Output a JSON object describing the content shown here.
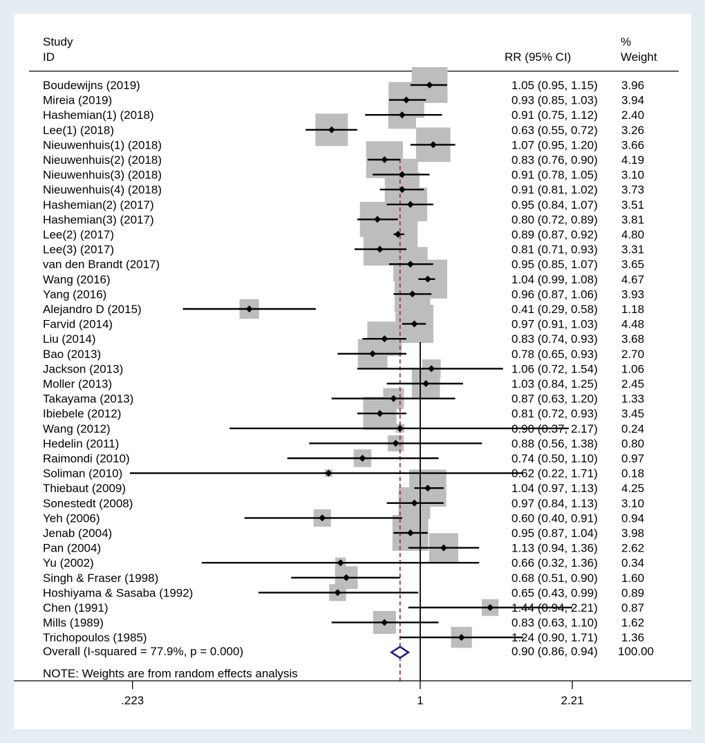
{
  "chart_data": {
    "type": "forest",
    "header": {
      "study_line1": "Study",
      "study_line2": "ID",
      "effect_label": "RR (95% CI)",
      "weight_line1": "%",
      "weight_line2": "Weight"
    },
    "x_scale": "log",
    "xlim": [
      0.13,
      3.85
    ],
    "x_ticks": [
      {
        "value": 0.223,
        "label": ".223"
      },
      {
        "value": 1,
        "label": "1"
      },
      {
        "value": 2.21,
        "label": "2.21"
      }
    ],
    "null_line": 1,
    "studies": [
      {
        "label": "Boudewijns (2019)",
        "rr": 1.05,
        "lo": 0.95,
        "hi": 1.15,
        "ci_text": "1.05 (0.95, 1.15)",
        "weight": 3.96,
        "weight_text": "3.96"
      },
      {
        "label": "Mireia  (2019)",
        "rr": 0.93,
        "lo": 0.85,
        "hi": 1.03,
        "ci_text": "0.93 (0.85, 1.03)",
        "weight": 3.94,
        "weight_text": "3.94"
      },
      {
        "label": "Hashemian(1) (2018)",
        "rr": 0.91,
        "lo": 0.75,
        "hi": 1.12,
        "ci_text": "0.91 (0.75, 1.12)",
        "weight": 2.4,
        "weight_text": "2.40"
      },
      {
        "label": "Lee(1) (2018)",
        "rr": 0.63,
        "lo": 0.55,
        "hi": 0.72,
        "ci_text": "0.63 (0.55, 0.72)",
        "weight": 3.26,
        "weight_text": "3.26"
      },
      {
        "label": "Nieuwenhuis(1) (2018)",
        "rr": 1.07,
        "lo": 0.95,
        "hi": 1.2,
        "ci_text": "1.07 (0.95, 1.20)",
        "weight": 3.66,
        "weight_text": "3.66"
      },
      {
        "label": "Nieuwenhuis(2) (2018)",
        "rr": 0.83,
        "lo": 0.76,
        "hi": 0.9,
        "ci_text": "0.83 (0.76, 0.90)",
        "weight": 4.19,
        "weight_text": "4.19"
      },
      {
        "label": "Nieuwenhuis(3) (2018)",
        "rr": 0.91,
        "lo": 0.78,
        "hi": 1.05,
        "ci_text": "0.91 (0.78, 1.05)",
        "weight": 3.1,
        "weight_text": "3.10"
      },
      {
        "label": "Nieuwenhuis(4) (2018)",
        "rr": 0.91,
        "lo": 0.81,
        "hi": 1.02,
        "ci_text": "0.91 (0.81, 1.02)",
        "weight": 3.73,
        "weight_text": "3.73"
      },
      {
        "label": "Hashemian(2) (2017)",
        "rr": 0.95,
        "lo": 0.84,
        "hi": 1.07,
        "ci_text": "0.95 (0.84, 1.07)",
        "weight": 3.51,
        "weight_text": "3.51"
      },
      {
        "label": "Hashemian(3) (2017)",
        "rr": 0.8,
        "lo": 0.72,
        "hi": 0.89,
        "ci_text": "0.80 (0.72, 0.89)",
        "weight": 3.81,
        "weight_text": "3.81"
      },
      {
        "label": "Lee(2) (2017)",
        "rr": 0.89,
        "lo": 0.87,
        "hi": 0.92,
        "ci_text": "0.89 (0.87, 0.92)",
        "weight": 4.8,
        "weight_text": "4.80"
      },
      {
        "label": "Lee(3) (2017)",
        "rr": 0.81,
        "lo": 0.71,
        "hi": 0.93,
        "ci_text": "0.81 (0.71, 0.93)",
        "weight": 3.31,
        "weight_text": "3.31"
      },
      {
        "label": "van den Brandt (2017)",
        "rr": 0.95,
        "lo": 0.85,
        "hi": 1.07,
        "ci_text": "0.95 (0.85, 1.07)",
        "weight": 3.65,
        "weight_text": "3.65"
      },
      {
        "label": "Wang (2016)",
        "rr": 1.04,
        "lo": 0.99,
        "hi": 1.08,
        "ci_text": "1.04 (0.99, 1.08)",
        "weight": 4.67,
        "weight_text": "4.67"
      },
      {
        "label": "Yang (2016)",
        "rr": 0.96,
        "lo": 0.87,
        "hi": 1.06,
        "ci_text": "0.96 (0.87, 1.06)",
        "weight": 3.93,
        "weight_text": "3.93"
      },
      {
        "label": "Alejandro D (2015)",
        "rr": 0.41,
        "lo": 0.29,
        "hi": 0.58,
        "ci_text": "0.41 (0.29, 0.58)",
        "weight": 1.18,
        "weight_text": "1.18"
      },
      {
        "label": "Farvid (2014)",
        "rr": 0.97,
        "lo": 0.91,
        "hi": 1.03,
        "ci_text": "0.97 (0.91, 1.03)",
        "weight": 4.48,
        "weight_text": "4.48"
      },
      {
        "label": "Liu (2014)",
        "rr": 0.83,
        "lo": 0.74,
        "hi": 0.93,
        "ci_text": "0.83 (0.74, 0.93)",
        "weight": 3.68,
        "weight_text": "3.68"
      },
      {
        "label": "Bao (2013)",
        "rr": 0.78,
        "lo": 0.65,
        "hi": 0.93,
        "ci_text": "0.78 (0.65, 0.93)",
        "weight": 2.7,
        "weight_text": "2.70"
      },
      {
        "label": "Jackson (2013)",
        "rr": 1.06,
        "lo": 0.72,
        "hi": 1.54,
        "ci_text": "1.06 (0.72, 1.54)",
        "weight": 1.06,
        "weight_text": "1.06"
      },
      {
        "label": "Moller (2013)",
        "rr": 1.03,
        "lo": 0.84,
        "hi": 1.25,
        "ci_text": "1.03 (0.84, 1.25)",
        "weight": 2.45,
        "weight_text": "2.45"
      },
      {
        "label": "Takayama (2013)",
        "rr": 0.87,
        "lo": 0.63,
        "hi": 1.2,
        "ci_text": "0.87 (0.63, 1.20)",
        "weight": 1.33,
        "weight_text": "1.33"
      },
      {
        "label": "Ibiebele (2012)",
        "rr": 0.81,
        "lo": 0.72,
        "hi": 0.93,
        "ci_text": "0.81 (0.72, 0.93)",
        "weight": 3.45,
        "weight_text": "3.45"
      },
      {
        "label": "Wang (2012)",
        "rr": 0.9,
        "lo": 0.37,
        "hi": 2.17,
        "ci_text": "0.90 (0.37, 2.17)",
        "weight": 0.24,
        "weight_text": "0.24"
      },
      {
        "label": "Hedelin (2011)",
        "rr": 0.88,
        "lo": 0.56,
        "hi": 1.38,
        "ci_text": "0.88 (0.56, 1.38)",
        "weight": 0.8,
        "weight_text": "0.80"
      },
      {
        "label": "Raimondi (2010)",
        "rr": 0.74,
        "lo": 0.5,
        "hi": 1.1,
        "ci_text": "0.74 (0.50, 1.10)",
        "weight": 0.97,
        "weight_text": "0.97"
      },
      {
        "label": "Soliman (2010)",
        "rr": 0.62,
        "lo": 0.22,
        "hi": 1.71,
        "ci_text": "0.62 (0.22, 1.71)",
        "weight": 0.18,
        "weight_text": "0.18"
      },
      {
        "label": "Thiebaut (2009)",
        "rr": 1.04,
        "lo": 0.97,
        "hi": 1.13,
        "ci_text": "1.04 (0.97, 1.13)",
        "weight": 4.25,
        "weight_text": "4.25"
      },
      {
        "label": "Sonestedt (2008)",
        "rr": 0.97,
        "lo": 0.84,
        "hi": 1.13,
        "ci_text": "0.97 (0.84, 1.13)",
        "weight": 3.1,
        "weight_text": "3.10"
      },
      {
        "label": "Yeh (2006)",
        "rr": 0.6,
        "lo": 0.4,
        "hi": 0.91,
        "ci_text": "0.60 (0.40, 0.91)",
        "weight": 0.94,
        "weight_text": "0.94"
      },
      {
        "label": "Jenab (2004)",
        "rr": 0.95,
        "lo": 0.87,
        "hi": 1.04,
        "ci_text": "0.95 (0.87, 1.04)",
        "weight": 3.98,
        "weight_text": "3.98"
      },
      {
        "label": "Pan (2004)",
        "rr": 1.13,
        "lo": 0.94,
        "hi": 1.36,
        "ci_text": "1.13 (0.94, 1.36)",
        "weight": 2.62,
        "weight_text": "2.62"
      },
      {
        "label": "Yu (2002)",
        "rr": 0.66,
        "lo": 0.32,
        "hi": 1.36,
        "ci_text": "0.66 (0.32, 1.36)",
        "weight": 0.34,
        "weight_text": "0.34"
      },
      {
        "label": "Singh & Fraser (1998)",
        "rr": 0.68,
        "lo": 0.51,
        "hi": 0.9,
        "ci_text": "0.68 (0.51, 0.90)",
        "weight": 1.6,
        "weight_text": "1.60"
      },
      {
        "label": "Hoshiyama & Sasaba (1992)",
        "rr": 0.65,
        "lo": 0.43,
        "hi": 0.99,
        "ci_text": "0.65 (0.43, 0.99)",
        "weight": 0.89,
        "weight_text": "0.89"
      },
      {
        "label": "Chen (1991)",
        "rr": 1.44,
        "lo": 0.94,
        "hi": 2.21,
        "ci_text": "1.44 (0.94, 2.21)",
        "weight": 0.87,
        "weight_text": "0.87"
      },
      {
        "label": "Mills (1989)",
        "rr": 0.83,
        "lo": 0.63,
        "hi": 1.1,
        "ci_text": "0.83 (0.63, 1.10)",
        "weight": 1.62,
        "weight_text": "1.62"
      },
      {
        "label": "Trichopoulos (1985)",
        "rr": 1.24,
        "lo": 0.9,
        "hi": 1.71,
        "ci_text": "1.24 (0.90, 1.71)",
        "weight": 1.36,
        "weight_text": "1.36"
      }
    ],
    "overall": {
      "label": "Overall  (I-squared = 77.9%, p = 0.000)",
      "rr": 0.9,
      "lo": 0.86,
      "hi": 0.94,
      "ci_text": "0.90 (0.86, 0.94)",
      "weight_text": "100.00"
    },
    "note": "NOTE: Weights are from random effects analysis",
    "colors": {
      "background": "#e4edf2",
      "panel": "#ffffff",
      "box": "#bdbdbd",
      "line": "#000000",
      "overall_diamond": "#1f1f7a",
      "overall_line": "#a0363a"
    }
  }
}
